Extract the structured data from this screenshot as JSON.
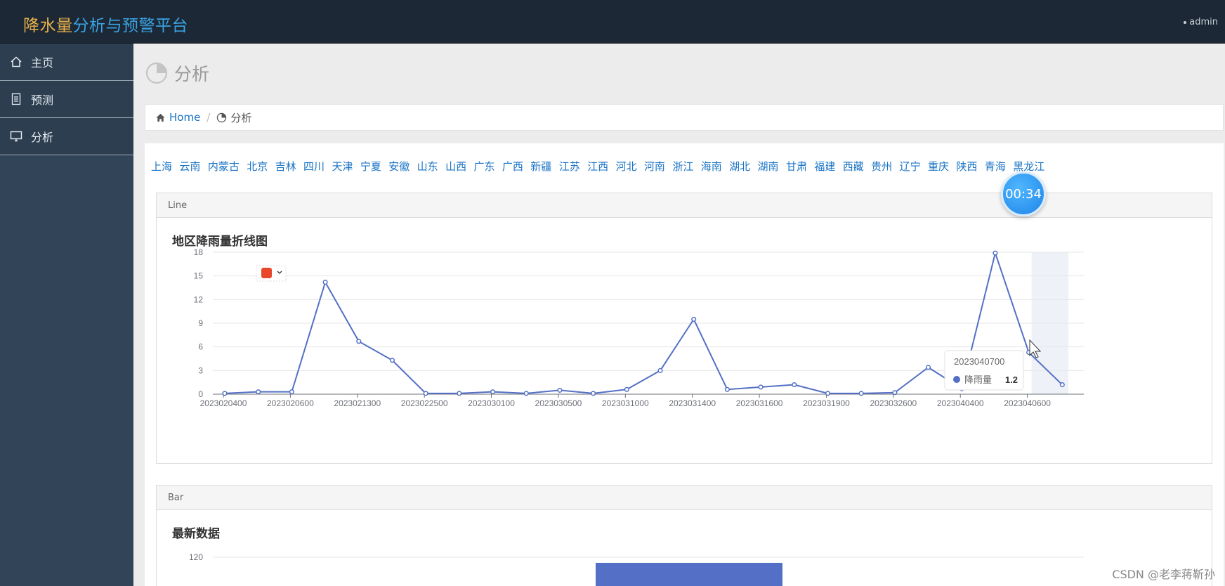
{
  "brand": {
    "part1": "降水量",
    "part2": "分析与预警平台"
  },
  "user": {
    "name": "admin"
  },
  "sidebar": {
    "items": [
      {
        "label": "主页",
        "icon": "home-icon"
      },
      {
        "label": "预测",
        "icon": "document-icon"
      },
      {
        "label": "分析",
        "icon": "monitor-icon"
      }
    ]
  },
  "page": {
    "title": "分析"
  },
  "breadcrumb": {
    "home": "Home",
    "current": "分析"
  },
  "regions": [
    "上海",
    "云南",
    "内蒙古",
    "北京",
    "吉林",
    "四川",
    "天津",
    "宁夏",
    "安徽",
    "山东",
    "山西",
    "广东",
    "广西",
    "新疆",
    "江苏",
    "江西",
    "河北",
    "河南",
    "浙江",
    "海南",
    "湖北",
    "湖南",
    "甘肃",
    "福建",
    "西藏",
    "贵州",
    "辽宁",
    "重庆",
    "陕西",
    "青海",
    "黑龙江"
  ],
  "timer": "00:34",
  "line_card": {
    "header": "Line",
    "title": "地区降雨量折线图"
  },
  "bar_card": {
    "header": "Bar",
    "title": "最新数据"
  },
  "tooltip": {
    "date": "2023040700",
    "series": "降雨量",
    "value": "1.2"
  },
  "watermark": "CSDN @老李蒋靳孙",
  "chart_data": [
    {
      "type": "line",
      "title": "地区降雨量折线图",
      "series": [
        {
          "name": "降雨量",
          "color": "#5470c6",
          "values": [
            0.1,
            0.3,
            0.3,
            14.2,
            6.7,
            4.3,
            0.1,
            0.1,
            0.3,
            0.1,
            0.5,
            0.1,
            0.6,
            3.0,
            9.5,
            0.6,
            0.9,
            1.2,
            0.1,
            0.1,
            0.2,
            3.4,
            0.7,
            17.9,
            5.3,
            1.2
          ]
        }
      ],
      "x_tick_labels": [
        "2023020400",
        "2023020600",
        "2023021300",
        "2023022500",
        "2023030100",
        "2023030500",
        "2023031000",
        "2023031400",
        "2023031600",
        "2023031900",
        "2023032600",
        "2023040400",
        "2023040600"
      ],
      "y_ticks": [
        0,
        3,
        6,
        9,
        12,
        15,
        18
      ],
      "ylim": [
        0,
        18
      ]
    },
    {
      "type": "bar",
      "title": "最新数据",
      "y_ticks_visible": [
        120
      ]
    }
  ]
}
